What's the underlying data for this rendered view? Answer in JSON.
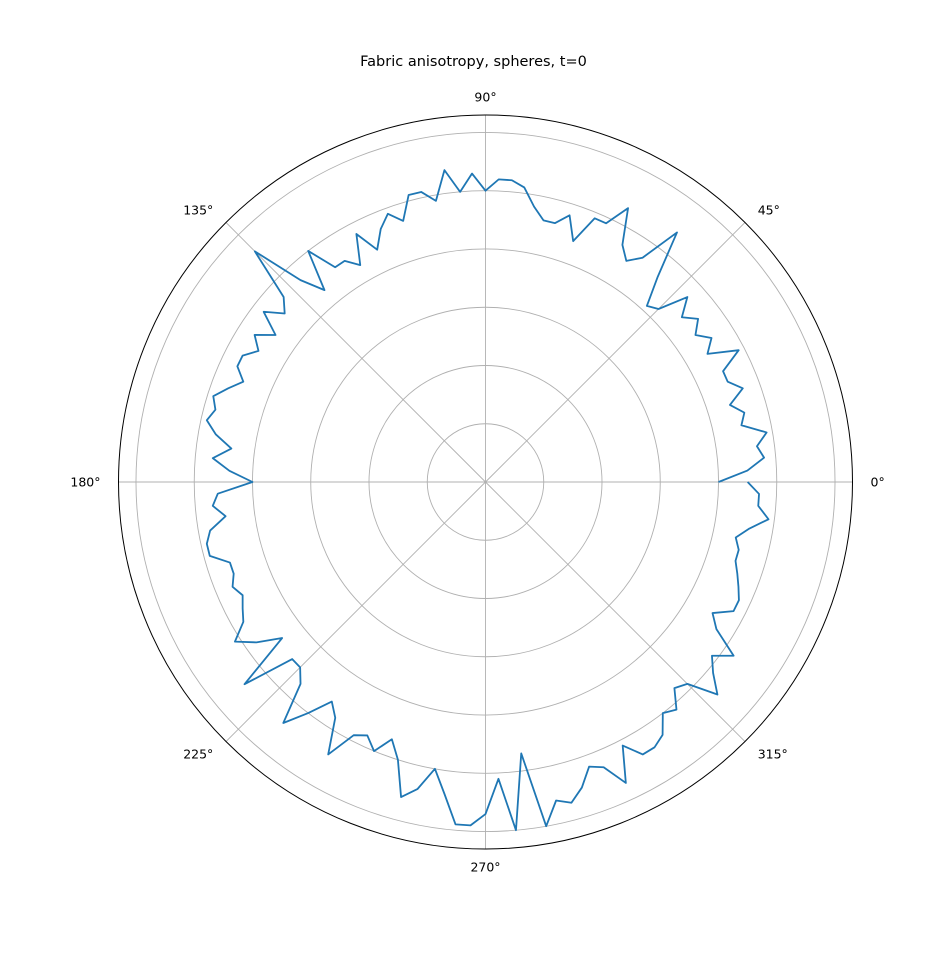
{
  "chart_data": {
    "type": "line",
    "projection": "polar",
    "title": "Fabric anisotropy, spheres, t=0",
    "angle_unit": "degrees",
    "angle_tick_labels": [
      "0°",
      "45°",
      "90°",
      "135°",
      "180°",
      "225°",
      "270°",
      "315°"
    ],
    "radial_tick_labels": [],
    "rlim": [
      0,
      6.3
    ],
    "radial_gridlines": [
      1,
      2,
      3,
      4,
      5,
      6
    ],
    "grid": true,
    "series": [
      {
        "color": "#1f77b4",
        "theta": [
          0,
          2.5,
          5,
          7.5,
          10,
          12.5,
          15,
          17.5,
          20,
          22.5,
          25,
          27.5,
          30,
          32.5,
          35,
          37.5,
          40,
          42.5,
          45,
          47.5,
          50,
          52.5,
          55,
          57.5,
          60,
          62.5,
          65,
          67.5,
          70,
          72.5,
          75,
          77.5,
          80,
          82.5,
          85,
          87.5,
          90,
          92.5,
          95,
          97.5,
          100,
          102.5,
          105,
          107.5,
          110,
          112.5,
          115,
          117.5,
          120,
          122.5,
          125,
          127.5,
          130,
          132.5,
          135,
          137.5,
          140,
          142.5,
          145,
          147.5,
          150,
          152.5,
          155,
          157.5,
          160,
          162.5,
          165,
          167.5,
          170,
          172.5,
          175,
          177.5,
          180,
          182.5,
          185,
          187.5,
          190,
          192.5,
          195,
          197.5,
          200,
          202.5,
          205,
          207.5,
          210,
          212.5,
          215,
          217.5,
          220,
          222.5,
          225,
          227.5,
          230,
          232.5,
          235,
          237.5,
          240,
          242.5,
          245,
          247.5,
          250,
          252.5,
          255,
          257.5,
          260,
          262.5,
          265,
          267.5,
          270,
          272.5,
          275,
          277.5,
          280,
          282.5,
          285,
          287.5,
          290,
          292.5,
          295,
          297.5,
          300,
          302.5,
          305,
          307.5,
          310,
          312.5,
          315,
          317.5,
          320,
          322.5,
          325,
          327.5,
          330,
          332.5,
          335,
          337.5,
          340,
          342.5,
          345,
          347.5,
          350,
          352.5,
          355,
          357.5,
          360
        ],
        "r": [
          4.0,
          4.5,
          4.8,
          4.7,
          4.9,
          4.5,
          4.6,
          4.4,
          4.7,
          4.5,
          4.5,
          4.9,
          4.4,
          4.6,
          4.4,
          4.6,
          4.4,
          4.7,
          4.2,
          4.1,
          4.6,
          5.4,
          4.7,
          4.5,
          4.7,
          5.3,
          4.9,
          4.9,
          4.4,
          4.8,
          4.6,
          4.6,
          4.8,
          5.1,
          5.2,
          5.2,
          5.0,
          5.3,
          5.0,
          5.4,
          4.9,
          5.1,
          5.1,
          4.7,
          4.9,
          4.7,
          4.4,
          4.8,
          4.3,
          4.5,
          4.5,
          5.0,
          4.3,
          4.7,
          5.6,
          4.7,
          4.5,
          4.8,
          4.4,
          4.7,
          4.5,
          4.7,
          4.7,
          4.5,
          4.7,
          4.9,
          4.8,
          4.9,
          4.7,
          4.4,
          4.7,
          4.4,
          4.0,
          4.6,
          4.7,
          4.5,
          4.8,
          4.9,
          4.9,
          4.6,
          4.6,
          4.7,
          4.6,
          4.7,
          4.8,
          5.1,
          4.8,
          4.4,
          5.4,
          4.5,
          4.5,
          4.7,
          5.4,
          5.0,
          4.6,
          4.8,
          5.4,
          4.9,
          4.8,
          5.0,
          4.7,
          5.0,
          5.6,
          5.4,
          5.0,
          5.4,
          5.9,
          5.9,
          5.7,
          5.1,
          6.0,
          4.7,
          6.0,
          5.6,
          5.7,
          5.5,
          5.2,
          5.3,
          5.7,
          5.1,
          5.4,
          5.4,
          5.3,
          5.0,
          5.1,
          4.8,
          4.9,
          5.4,
          5.1,
          4.9,
          5.2,
          4.7,
          4.5,
          4.8,
          4.8,
          4.7,
          4.6,
          4.5,
          4.5,
          4.4,
          4.6,
          4.9,
          4.7,
          4.7,
          4.5,
          4.6,
          4.0
        ]
      }
    ]
  }
}
